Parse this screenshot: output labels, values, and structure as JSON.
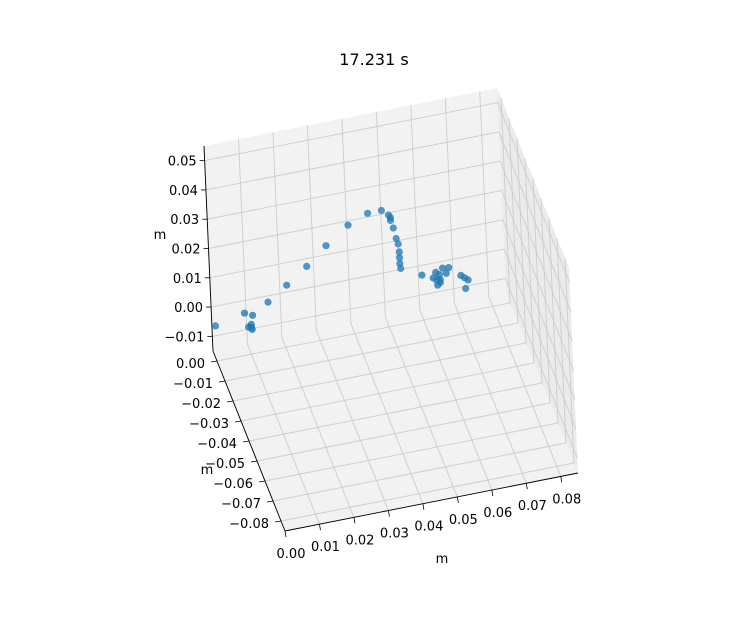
{
  "chart_data": {
    "type": "scatter",
    "projection": "3d",
    "title": "17.231 s",
    "xlabel": "m",
    "ylabel": "m",
    "zlabel": "m",
    "x_ticks": [
      "0.00",
      "0.01",
      "0.02",
      "0.03",
      "0.04",
      "0.05",
      "0.06",
      "0.07",
      "0.08"
    ],
    "y_ticks": [
      "0.00",
      "−0.01",
      "−0.02",
      "−0.03",
      "−0.04",
      "−0.05",
      "−0.06",
      "−0.07",
      "−0.08"
    ],
    "z_ticks": [
      "0.05",
      "0.04",
      "0.03",
      "0.02",
      "0.01",
      "0.00",
      "−0.01"
    ],
    "xlim": [
      0.0,
      0.085
    ],
    "ylim": [
      -0.085,
      0.005
    ],
    "zlim": [
      -0.015,
      0.055
    ],
    "grid": true,
    "marker_color": "#1f77b4",
    "points": [
      {
        "x": 0.0,
        "y": 0.0,
        "z": -0.003
      },
      {
        "x": 0.0075,
        "y": -0.005,
        "z": 0.003
      },
      {
        "x": 0.01,
        "y": -0.004,
        "z": 0.001
      },
      {
        "x": 0.015,
        "y": -0.002,
        "z": 0.003
      },
      {
        "x": 0.0085,
        "y": -0.005,
        "z": -0.002
      },
      {
        "x": 0.0095,
        "y": -0.005,
        "z": -0.003
      },
      {
        "x": 0.0095,
        "y": -0.004,
        "z": -0.002
      },
      {
        "x": 0.0095,
        "y": -0.004,
        "z": -0.003
      },
      {
        "x": 0.021,
        "y": 0.0,
        "z": 0.006
      },
      {
        "x": 0.027,
        "y": 0.0,
        "z": 0.011
      },
      {
        "x": 0.033,
        "y": 0.001,
        "z": 0.016
      },
      {
        "x": 0.04,
        "y": 0.003,
        "z": 0.02
      },
      {
        "x": 0.046,
        "y": 0.004,
        "z": 0.022
      },
      {
        "x": 0.05,
        "y": 0.004,
        "z": 0.022
      },
      {
        "x": 0.052,
        "y": 0.004,
        "z": 0.02
      },
      {
        "x": 0.0525,
        "y": 0.004,
        "z": 0.019
      },
      {
        "x": 0.0525,
        "y": 0.004,
        "z": 0.018
      },
      {
        "x": 0.053,
        "y": 0.003,
        "z": 0.016
      },
      {
        "x": 0.0535,
        "y": 0.002,
        "z": 0.013
      },
      {
        "x": 0.054,
        "y": 0.002,
        "z": 0.011
      },
      {
        "x": 0.054,
        "y": 0.001,
        "z": 0.009
      },
      {
        "x": 0.054,
        "y": 0.001,
        "z": 0.007
      },
      {
        "x": 0.054,
        "y": 0.001,
        "z": 0.005
      },
      {
        "x": 0.054,
        "y": 0.0,
        "z": 0.004
      },
      {
        "x": 0.059,
        "y": -0.005,
        "z": 0.004
      },
      {
        "x": 0.063,
        "y": -0.005,
        "z": 0.004
      },
      {
        "x": 0.064,
        "y": -0.005,
        "z": 0.003
      },
      {
        "x": 0.065,
        "y": -0.005,
        "z": 0.005
      },
      {
        "x": 0.066,
        "y": -0.005,
        "z": 0.003
      },
      {
        "x": 0.067,
        "y": -0.004,
        "z": 0.004
      },
      {
        "x": 0.062,
        "y": -0.006,
        "z": 0.003
      },
      {
        "x": 0.063,
        "y": -0.006,
        "z": 0.002
      },
      {
        "x": 0.063,
        "y": -0.007,
        "z": 0.001
      },
      {
        "x": 0.064,
        "y": -0.006,
        "z": 0.001
      },
      {
        "x": 0.064,
        "y": -0.006,
        "z": 0.002
      },
      {
        "x": 0.07,
        "y": -0.006,
        "z": 0.002
      },
      {
        "x": 0.071,
        "y": -0.006,
        "z": 0.001
      },
      {
        "x": 0.072,
        "y": -0.006,
        "z": 0.0
      },
      {
        "x": 0.071,
        "y": -0.007,
        "z": -0.002
      }
    ]
  }
}
